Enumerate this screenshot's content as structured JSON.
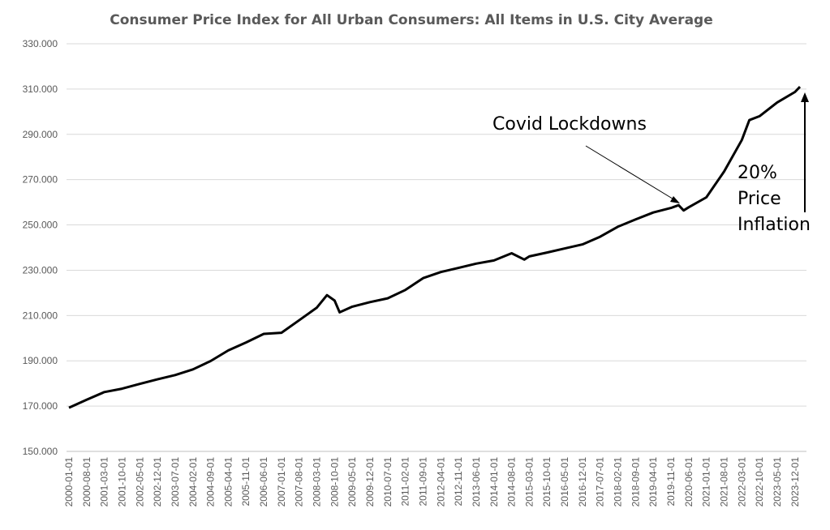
{
  "chart_data": {
    "type": "line",
    "title": "Consumer Price Index for All Urban Consumers: All Items in U.S. City Average",
    "xlabel": "",
    "ylabel": "",
    "ylim": [
      150,
      330
    ],
    "yticks": [
      "150.000",
      "170.000",
      "190.000",
      "210.000",
      "230.000",
      "250.000",
      "270.000",
      "290.000",
      "310.000",
      "330.000"
    ],
    "xticks": [
      "2000-01-01",
      "2000-08-01",
      "2001-03-01",
      "2001-10-01",
      "2002-05-01",
      "2002-12-01",
      "2003-07-01",
      "2004-02-01",
      "2004-09-01",
      "2005-04-01",
      "2005-11-01",
      "2006-06-01",
      "2007-01-01",
      "2007-08-01",
      "2008-03-01",
      "2008-10-01",
      "2009-05-01",
      "2009-12-01",
      "2010-07-01",
      "2011-02-01",
      "2011-09-01",
      "2012-04-01",
      "2012-11-01",
      "2013-06-01",
      "2014-01-01",
      "2014-08-01",
      "2015-03-01",
      "2015-10-01",
      "2016-05-01",
      "2016-12-01",
      "2017-07-01",
      "2018-02-01",
      "2018-09-01",
      "2019-04-01",
      "2019-11-01",
      "2020-06-01",
      "2021-01-01",
      "2021-08-01",
      "2022-03-01",
      "2022-10-01",
      "2023-05-01",
      "2023-12-01"
    ],
    "grid": true,
    "legend": "none",
    "series": [
      {
        "color": "#000000",
        "x": [
          "2000-01-01",
          "2000-08-01",
          "2001-03-01",
          "2001-10-01",
          "2002-05-01",
          "2002-12-01",
          "2003-07-01",
          "2004-02-01",
          "2004-09-01",
          "2005-04-01",
          "2005-11-01",
          "2006-06-01",
          "2007-01-01",
          "2007-08-01",
          "2008-03-01",
          "2008-07-01",
          "2008-10-01",
          "2008-12-01",
          "2009-05-01",
          "2009-12-01",
          "2010-07-01",
          "2011-02-01",
          "2011-09-01",
          "2012-04-01",
          "2012-11-01",
          "2013-06-01",
          "2014-01-01",
          "2014-08-01",
          "2015-01-01",
          "2015-03-01",
          "2015-10-01",
          "2016-05-01",
          "2016-12-01",
          "2017-07-01",
          "2018-02-01",
          "2018-09-01",
          "2019-04-01",
          "2019-11-01",
          "2020-02-01",
          "2020-04-01",
          "2020-06-01",
          "2021-01-01",
          "2021-08-01",
          "2022-03-01",
          "2022-06-01",
          "2022-10-01",
          "2023-05-01",
          "2023-12-01",
          "2024-02-01"
        ],
        "values": [
          169.3,
          172.8,
          176.2,
          177.7,
          179.8,
          181.8,
          183.7,
          186.2,
          189.9,
          194.6,
          198.1,
          201.9,
          202.4,
          207.9,
          213.5,
          219.0,
          216.6,
          211.4,
          213.9,
          215.9,
          217.6,
          221.3,
          226.5,
          229.2,
          231.0,
          232.9,
          234.3,
          237.5,
          234.7,
          236.1,
          237.8,
          239.6,
          241.4,
          244.8,
          249.2,
          252.4,
          255.5,
          257.5,
          258.7,
          256.4,
          257.8,
          262.2,
          273.6,
          287.5,
          296.3,
          298.0,
          304.1,
          308.7,
          311.0
        ]
      }
    ],
    "annotations": [
      {
        "text": "Covid Lockdowns",
        "target": "2020-02-01"
      },
      {
        "lines": [
          "20%",
          "Price",
          "Inflation"
        ]
      }
    ]
  }
}
